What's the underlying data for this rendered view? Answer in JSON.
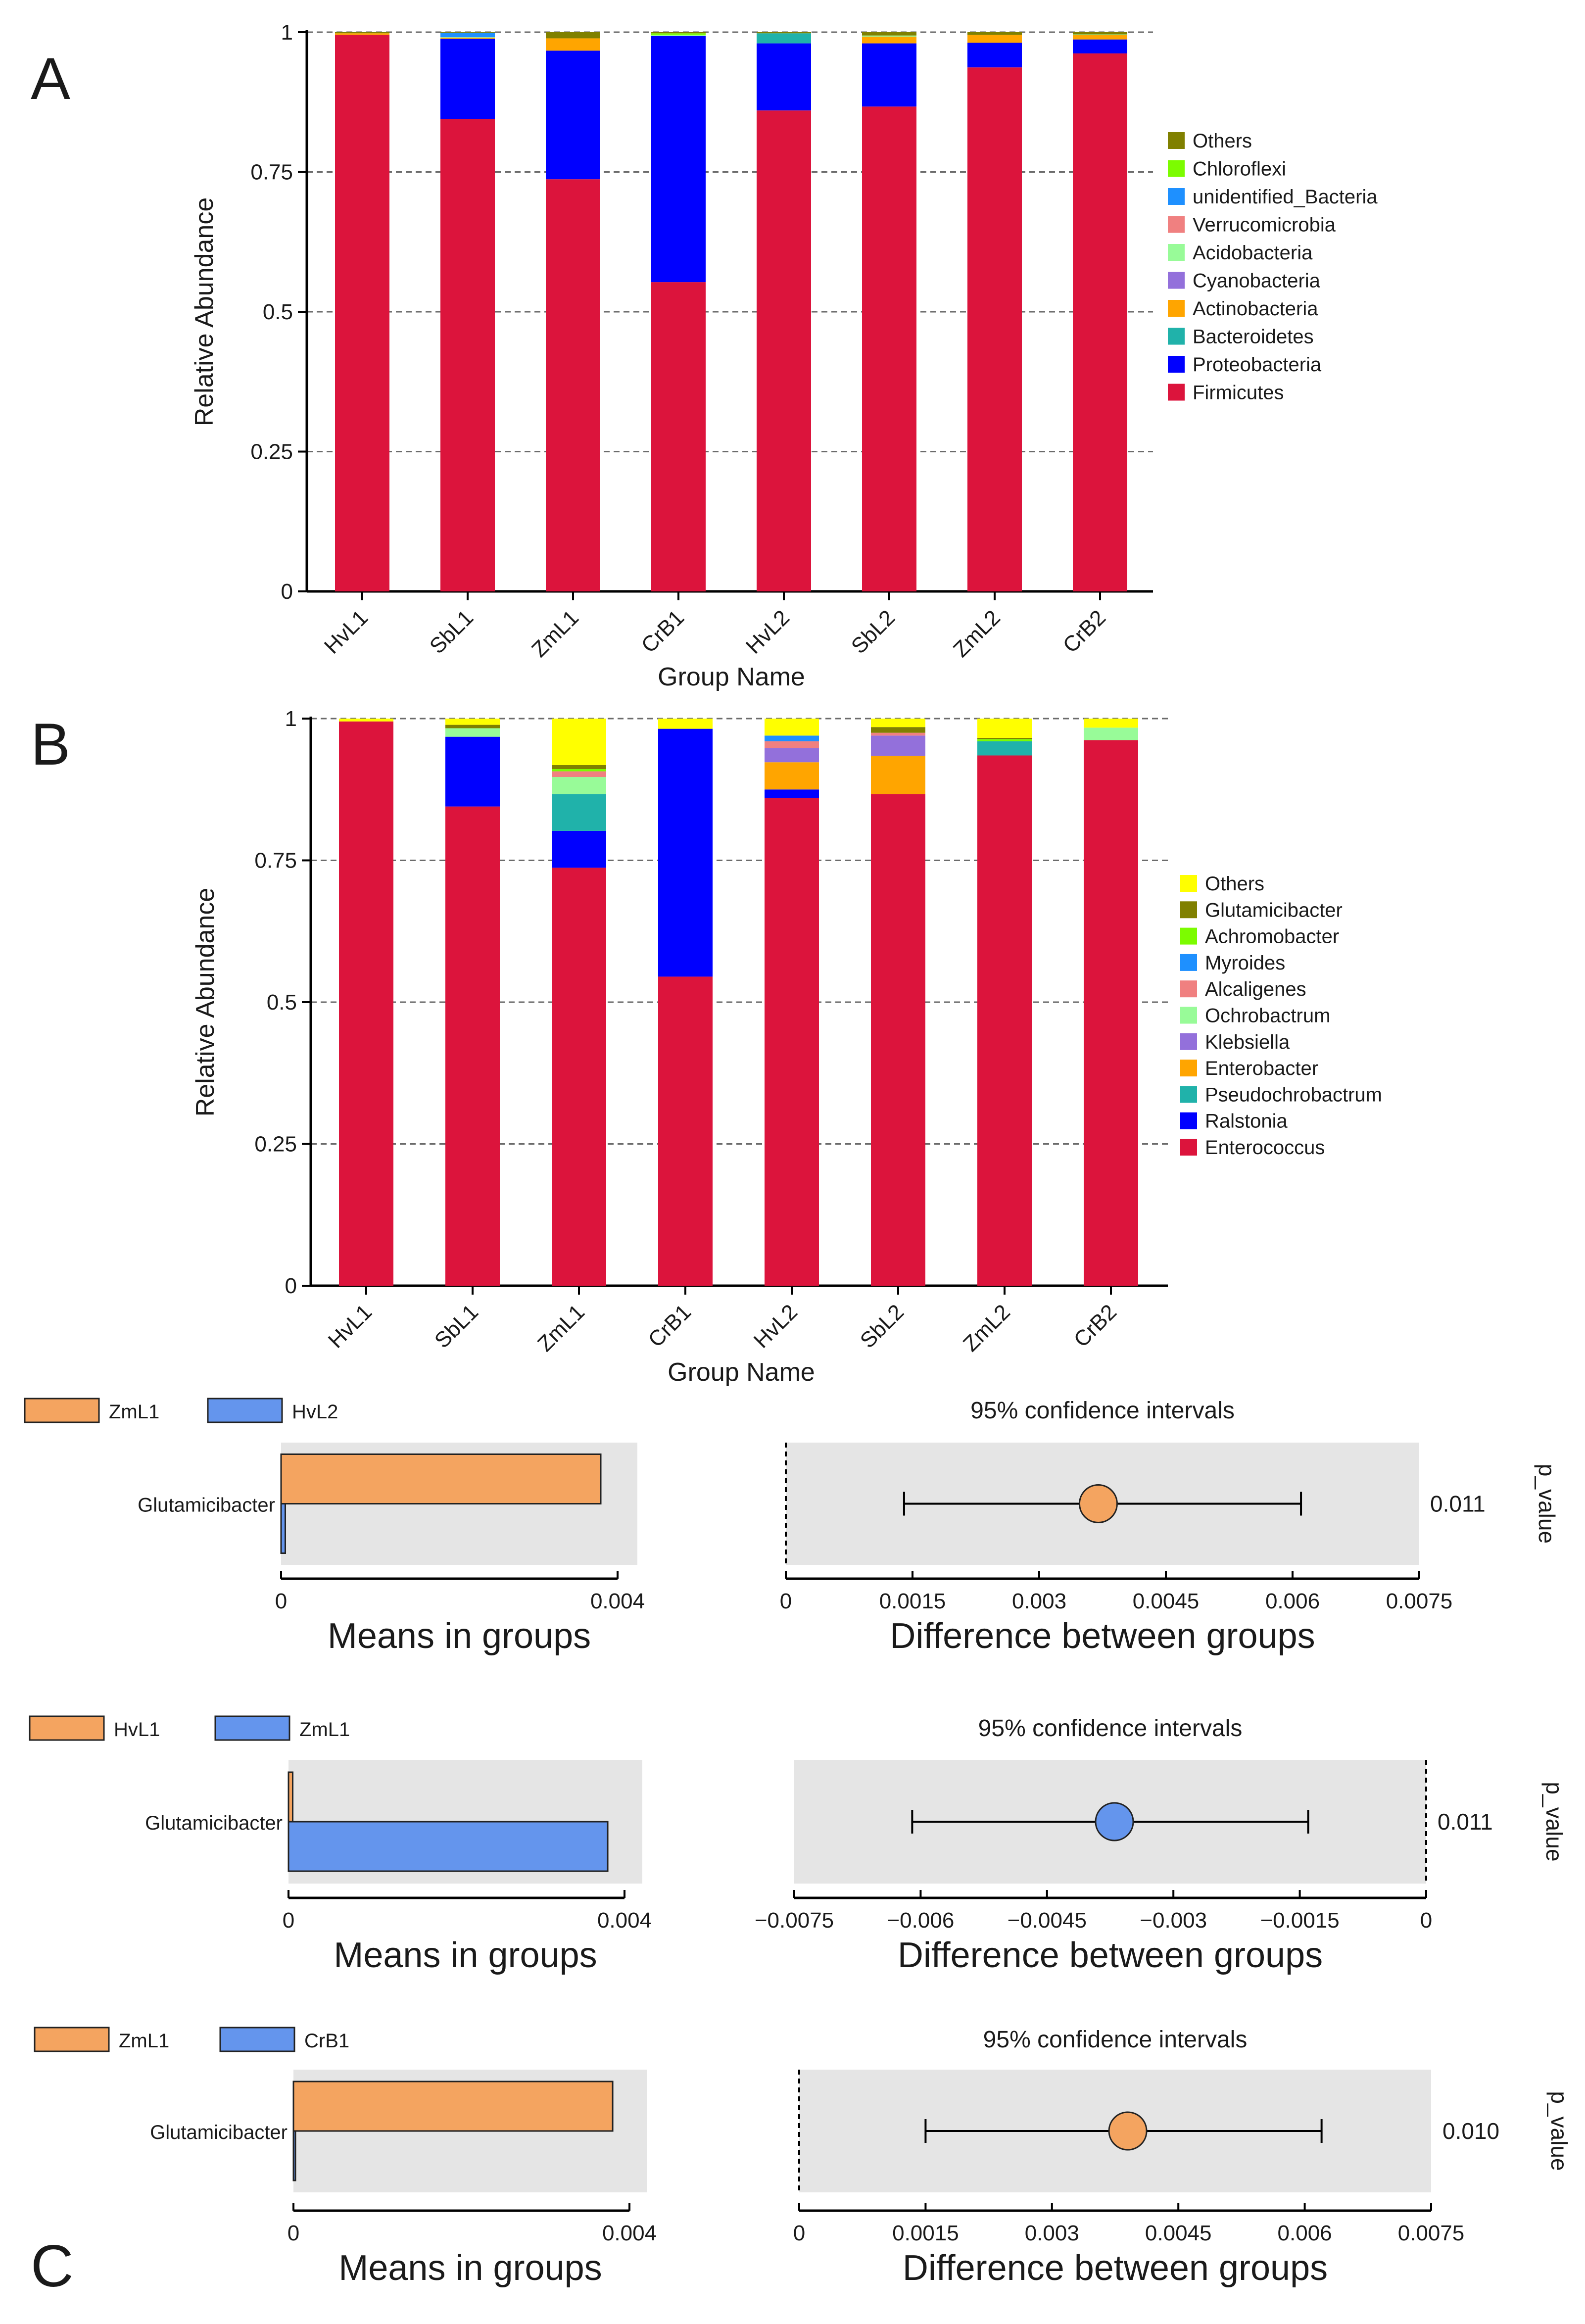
{
  "panels": [
    {
      "label": "A"
    },
    {
      "label": "B"
    },
    {
      "label": "C"
    }
  ],
  "chart_data": [
    {
      "type": "bar",
      "stacked": true,
      "panel": "A",
      "title": "",
      "xlabel": "Group Name",
      "ylabel": "Relative Abundance",
      "ylim": [
        0,
        1
      ],
      "yticks": [
        "0",
        "0.25",
        "0.5",
        "0.75",
        "1"
      ],
      "grid": true,
      "categories": [
        "HvL1",
        "SbL1",
        "ZmL1",
        "CrB1",
        "HvL2",
        "SbL2",
        "ZmL2",
        "CrB2"
      ],
      "series": [
        {
          "name": "Firmicutes",
          "color": "#dc143c",
          "values": [
            0.995,
            0.845,
            0.737,
            0.553,
            0.86,
            0.867,
            0.937,
            0.962
          ]
        },
        {
          "name": "Proteobacteria",
          "color": "#0000ff",
          "values": [
            0.0,
            0.143,
            0.23,
            0.44,
            0.12,
            0.113,
            0.044,
            0.025
          ]
        },
        {
          "name": "Bacteroidetes",
          "color": "#20b2aa",
          "values": [
            0.0,
            0.0,
            0.0,
            0.0,
            0.018,
            0.0,
            0.0,
            0.0
          ]
        },
        {
          "name": "Actinobacteria",
          "color": "#ffa500",
          "values": [
            0.003,
            0.002,
            0.022,
            0.0,
            0.0,
            0.012,
            0.014,
            0.008
          ]
        },
        {
          "name": "Cyanobacteria",
          "color": "#9370db",
          "values": [
            0.0,
            0.0,
            0.0,
            0.0,
            0.0,
            0.0,
            0.0,
            0.0
          ]
        },
        {
          "name": "Acidobacteria",
          "color": "#98fb98",
          "values": [
            0.0,
            0.001,
            0.0,
            0.002,
            0.0,
            0.002,
            0.0,
            0.001
          ]
        },
        {
          "name": "Verrucomicrobia",
          "color": "#f08080",
          "values": [
            0.0,
            0.0,
            0.0,
            0.0,
            0.0,
            0.0,
            0.0,
            0.0
          ]
        },
        {
          "name": "unidentified_Bacteria",
          "color": "#1e90ff",
          "values": [
            0.0,
            0.008,
            0.0,
            0.0,
            0.0,
            0.0,
            0.0,
            0.0
          ]
        },
        {
          "name": "Chloroflexi",
          "color": "#7cfc00",
          "values": [
            0.0,
            0.0,
            0.0,
            0.003,
            0.0,
            0.0,
            0.0,
            0.0
          ]
        },
        {
          "name": "Others",
          "color": "#808000",
          "values": [
            0.002,
            0.001,
            0.011,
            0.002,
            0.002,
            0.006,
            0.005,
            0.004
          ]
        }
      ]
    },
    {
      "type": "bar",
      "stacked": true,
      "panel": "B",
      "title": "",
      "xlabel": "Group Name",
      "ylabel": "Relative Abundance",
      "ylim": [
        0,
        1
      ],
      "yticks": [
        "0",
        "0.25",
        "0.5",
        "0.75",
        "1"
      ],
      "grid": true,
      "categories": [
        "HvL1",
        "SbL1",
        "ZmL1",
        "CrB1",
        "HvL2",
        "SbL2",
        "ZmL2",
        "CrB2"
      ],
      "series": [
        {
          "name": "Enterococcus",
          "color": "#dc143c",
          "values": [
            0.995,
            0.845,
            0.737,
            0.545,
            0.86,
            0.867,
            0.935,
            0.962
          ]
        },
        {
          "name": "Ralstonia",
          "color": "#0000ff",
          "values": [
            0.0,
            0.123,
            0.065,
            0.437,
            0.015,
            0.0,
            0.0,
            0.0
          ]
        },
        {
          "name": "Pseudochrobactrum",
          "color": "#20b2aa",
          "values": [
            0.0,
            0.0,
            0.065,
            0.0,
            0.0,
            0.0,
            0.025,
            0.0
          ]
        },
        {
          "name": "Enterobacter",
          "color": "#ffa500",
          "values": [
            0.0,
            0.0,
            0.0,
            0.0,
            0.048,
            0.067,
            0.0,
            0.0
          ]
        },
        {
          "name": "Klebsiella",
          "color": "#9370db",
          "values": [
            0.0,
            0.0,
            0.0,
            0.0,
            0.025,
            0.036,
            0.0,
            0.0
          ]
        },
        {
          "name": "Ochrobactrum",
          "color": "#98fb98",
          "values": [
            0.0,
            0.015,
            0.03,
            0.0,
            0.0,
            0.0,
            0.0,
            0.022
          ]
        },
        {
          "name": "Alcaligenes",
          "color": "#f08080",
          "values": [
            0.0,
            0.0,
            0.01,
            0.0,
            0.012,
            0.005,
            0.0,
            0.0
          ]
        },
        {
          "name": "Myroides",
          "color": "#1e90ff",
          "values": [
            0.0,
            0.0,
            0.0,
            0.0,
            0.01,
            0.0,
            0.0,
            0.0
          ]
        },
        {
          "name": "Achromobacter",
          "color": "#7cfc00",
          "values": [
            0.0,
            0.0,
            0.004,
            0.0,
            0.0,
            0.0,
            0.004,
            0.0
          ]
        },
        {
          "name": "Glutamicibacter",
          "color": "#808000",
          "values": [
            0.0,
            0.006,
            0.007,
            0.0,
            0.0,
            0.01,
            0.002,
            0.0
          ]
        },
        {
          "name": "Others",
          "color": "#ffff00",
          "values": [
            0.005,
            0.011,
            0.082,
            0.018,
            0.03,
            0.015,
            0.034,
            0.016
          ]
        }
      ]
    },
    {
      "type": "bar",
      "subtype": "extended-error-bar",
      "panel": "C",
      "comparison": 1,
      "feature": "Glutamicibacter",
      "groups": [
        {
          "name": "ZmL1",
          "color": "#f4a460",
          "mean": 0.0038
        },
        {
          "name": "HvL2",
          "color": "#6495ed",
          "mean": 5e-05
        }
      ],
      "means_xlabel": "Means in groups",
      "means_ticks": [
        "0",
        "0.004"
      ],
      "means_xlim": [
        0,
        0.004
      ],
      "diff_title": "95% confidence intervals",
      "diff_xlabel": "Difference between groups",
      "diff_ticks": [
        "0",
        "0.0015",
        "0.003",
        "0.0045",
        "0.006",
        "0.0075"
      ],
      "diff_xlim": [
        0,
        0.0075
      ],
      "diff": {
        "estimate": 0.0037,
        "ci_low": 0.0014,
        "ci_high": 0.0061,
        "color": "#f4a460"
      },
      "p_label": "p_value",
      "p_value": "0.011"
    },
    {
      "type": "bar",
      "subtype": "extended-error-bar",
      "panel": "C",
      "comparison": 2,
      "feature": "Glutamicibacter",
      "groups": [
        {
          "name": "HvL1",
          "color": "#f4a460",
          "mean": 5e-05
        },
        {
          "name": "ZmL1",
          "color": "#6495ed",
          "mean": 0.0038
        }
      ],
      "means_xlabel": "Means in groups",
      "means_ticks": [
        "0",
        "0.004"
      ],
      "means_xlim": [
        0,
        0.004
      ],
      "diff_title": "95% confidence intervals",
      "diff_xlabel": "Difference between groups",
      "diff_ticks": [
        "−0.0075",
        "−0.006",
        "−0.0045",
        "−0.003",
        "−0.0015",
        "0"
      ],
      "diff_xlim": [
        -0.0075,
        0
      ],
      "diff": {
        "estimate": -0.0037,
        "ci_low": -0.0061,
        "ci_high": -0.0014,
        "color": "#6495ed"
      },
      "p_label": "p_value",
      "p_value": "0.011"
    },
    {
      "type": "bar",
      "subtype": "extended-error-bar",
      "panel": "C",
      "comparison": 3,
      "feature": "Glutamicibacter",
      "groups": [
        {
          "name": "ZmL1",
          "color": "#f4a460",
          "mean": 0.0038
        },
        {
          "name": "CrB1",
          "color": "#6495ed",
          "mean": 0.0
        }
      ],
      "means_xlabel": "Means in groups",
      "means_ticks": [
        "0",
        "0.004"
      ],
      "means_xlim": [
        0,
        0.004
      ],
      "diff_title": "95% confidence intervals",
      "diff_xlabel": "Difference between groups",
      "diff_ticks": [
        "0",
        "0.0015",
        "0.003",
        "0.0045",
        "0.006",
        "0.0075"
      ],
      "diff_xlim": [
        0,
        0.0075
      ],
      "diff": {
        "estimate": 0.0039,
        "ci_low": 0.0015,
        "ci_high": 0.0062,
        "color": "#f4a460"
      },
      "p_label": "p_value",
      "p_value": "0.010"
    }
  ]
}
